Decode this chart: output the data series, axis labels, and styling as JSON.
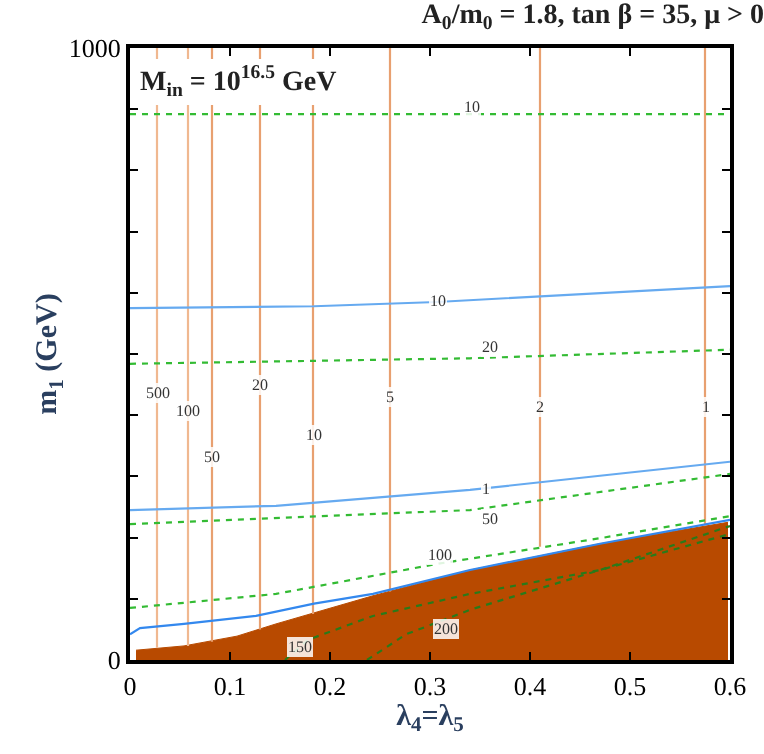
{
  "chart_data": {
    "type": "line",
    "title": "A$_{0}$/m$_{0}$ = 1.8, tan β = 35, μ > 0",
    "xlabel": "λ$_{4}$=λ$_{5}$",
    "ylabel": "m$_{1}$ (GeV)",
    "xlim": [
      0,
      0.6
    ],
    "ylim": [
      0,
      1000
    ],
    "xticks": [
      0,
      0.1,
      0.2,
      0.3,
      0.4,
      0.5,
      0.6
    ],
    "yticks": [
      0,
      {
        "value": 100,
        "label": null
      },
      {
        "value": 200,
        "label": null
      },
      {
        "value": 300,
        "label": null
      },
      {
        "value": 400,
        "label": null
      },
      {
        "value": 500,
        "label": null
      },
      {
        "value": 600,
        "label": null
      },
      {
        "value": 700,
        "label": null
      },
      {
        "value": 800,
        "label": null
      },
      {
        "value": 900,
        "label": null
      },
      1000
    ],
    "marker": "none",
    "series": [
      {
        "type": "area",
        "color": "#b84a00",
        "x": [
          0.006,
          0.054,
          0.107,
          0.146,
          0.243,
          0.34,
          0.47,
          0.598
        ],
        "values": [
          16,
          23,
          39,
          59,
          105,
          147,
          190,
          225
        ]
      },
      {
        "color": "#f0b890",
        "x": [
          0.027,
          0.027
        ],
        "values": [
          20,
          1000
        ]
      },
      {
        "color": "#f0b890",
        "x": [
          0.058,
          0.058
        ],
        "values": [
          23,
          1000
        ]
      },
      {
        "color": "#e8a070",
        "x": [
          0.082,
          0.082
        ],
        "values": [
          30,
          1000
        ]
      },
      {
        "color": "#e8a070",
        "x": [
          0.13,
          0.13
        ],
        "values": [
          50,
          1000
        ]
      },
      {
        "color": "#e8a070",
        "x": [
          0.183,
          0.183
        ],
        "values": [
          75,
          1000
        ]
      },
      {
        "color": "#e8a070",
        "x": [
          0.26,
          0.26
        ],
        "values": [
          112,
          1000
        ]
      },
      {
        "color": "#e8a070",
        "x": [
          0.41,
          0.41
        ],
        "values": [
          185,
          1000
        ]
      },
      {
        "color": "#e8a070",
        "x": [
          0.575,
          0.575
        ],
        "values": [
          220,
          1000
        ]
      },
      {
        "color": "#3388ee",
        "x": [
          0,
          0.01,
          0.054,
          0.126,
          0.184,
          0.243,
          0.34,
          0.47,
          0.6
        ],
        "values": [
          42,
          52,
          59,
          72,
          92,
          108,
          147,
          190,
          229
        ]
      },
      {
        "color": "#66aaf0",
        "x": [
          0,
          0.146,
          0.34,
          0.47,
          0.6
        ],
        "values": [
          245,
          252,
          278,
          301,
          324
        ]
      },
      {
        "color": "#66aaf0",
        "x": [
          0,
          0.184,
          0.307,
          0.6
        ],
        "values": [
          575,
          578,
          585,
          611
        ]
      },
      {
        "color": "#33bb33",
        "line_style": "dotted",
        "x": [
          0,
          0.6
        ],
        "values": [
          892,
          892
        ]
      },
      {
        "color": "#33bb33",
        "line_style": "dotted",
        "x": [
          0,
          0.34,
          0.6
        ],
        "values": [
          484,
          493,
          507
        ]
      },
      {
        "color": "#33bb33",
        "line_style": "dotted",
        "x": [
          0,
          0.34,
          0.6
        ],
        "values": [
          222,
          245,
          304
        ]
      },
      {
        "color": "#33bb33",
        "line_style": "dotted",
        "x": [
          0,
          0.146,
          0.307,
          0.47,
          0.6
        ],
        "values": [
          85,
          108,
          157,
          199,
          235
        ]
      },
      {
        "color": "#2a7a1a",
        "line_style": "dotted",
        "x": [
          0.155,
          0.178,
          0.243,
          0.34,
          0.47,
          0.6
        ],
        "values": [
          0,
          33,
          72,
          108,
          147,
          206
        ]
      },
      {
        "color": "#2a7a1a",
        "line_style": "dotted",
        "x": [
          0.237,
          0.276,
          0.34,
          0.47,
          0.6
        ],
        "values": [
          0,
          42,
          82,
          147,
          219
        ]
      }
    ],
    "annotations": [
      "M$_{in}$ = 10$^{16.5}$ GeV",
      {
        "text": "500",
        "x": 0.027,
        "y": 435
      },
      {
        "text": "100",
        "x": 0.058,
        "y": 408
      },
      {
        "text": "50",
        "x": 0.082,
        "y": 333
      },
      {
        "text": "20",
        "x": 0.13,
        "y": 448
      },
      {
        "text": "10",
        "x": 0.183,
        "y": 369
      },
      {
        "text": "5",
        "x": 0.26,
        "y": 431
      },
      {
        "text": "2",
        "x": 0.41,
        "y": 412
      },
      {
        "text": "1",
        "x": 0.575,
        "y": 412
      },
      {
        "text": "10",
        "x": 0.307,
        "y": 585
      },
      {
        "text": "1",
        "x": 0.355,
        "y": 280
      },
      {
        "text": "10",
        "x": 0.342,
        "y": 905
      },
      {
        "text": "20",
        "x": 0.36,
        "y": 510
      },
      {
        "text": "50",
        "x": 0.36,
        "y": 232
      },
      {
        "text": "100",
        "x": 0.31,
        "y": 170
      },
      {
        "text": "150",
        "x": 0.17,
        "y": 21
      },
      {
        "text": "200",
        "x": 0.316,
        "y": 52
      }
    ]
  }
}
